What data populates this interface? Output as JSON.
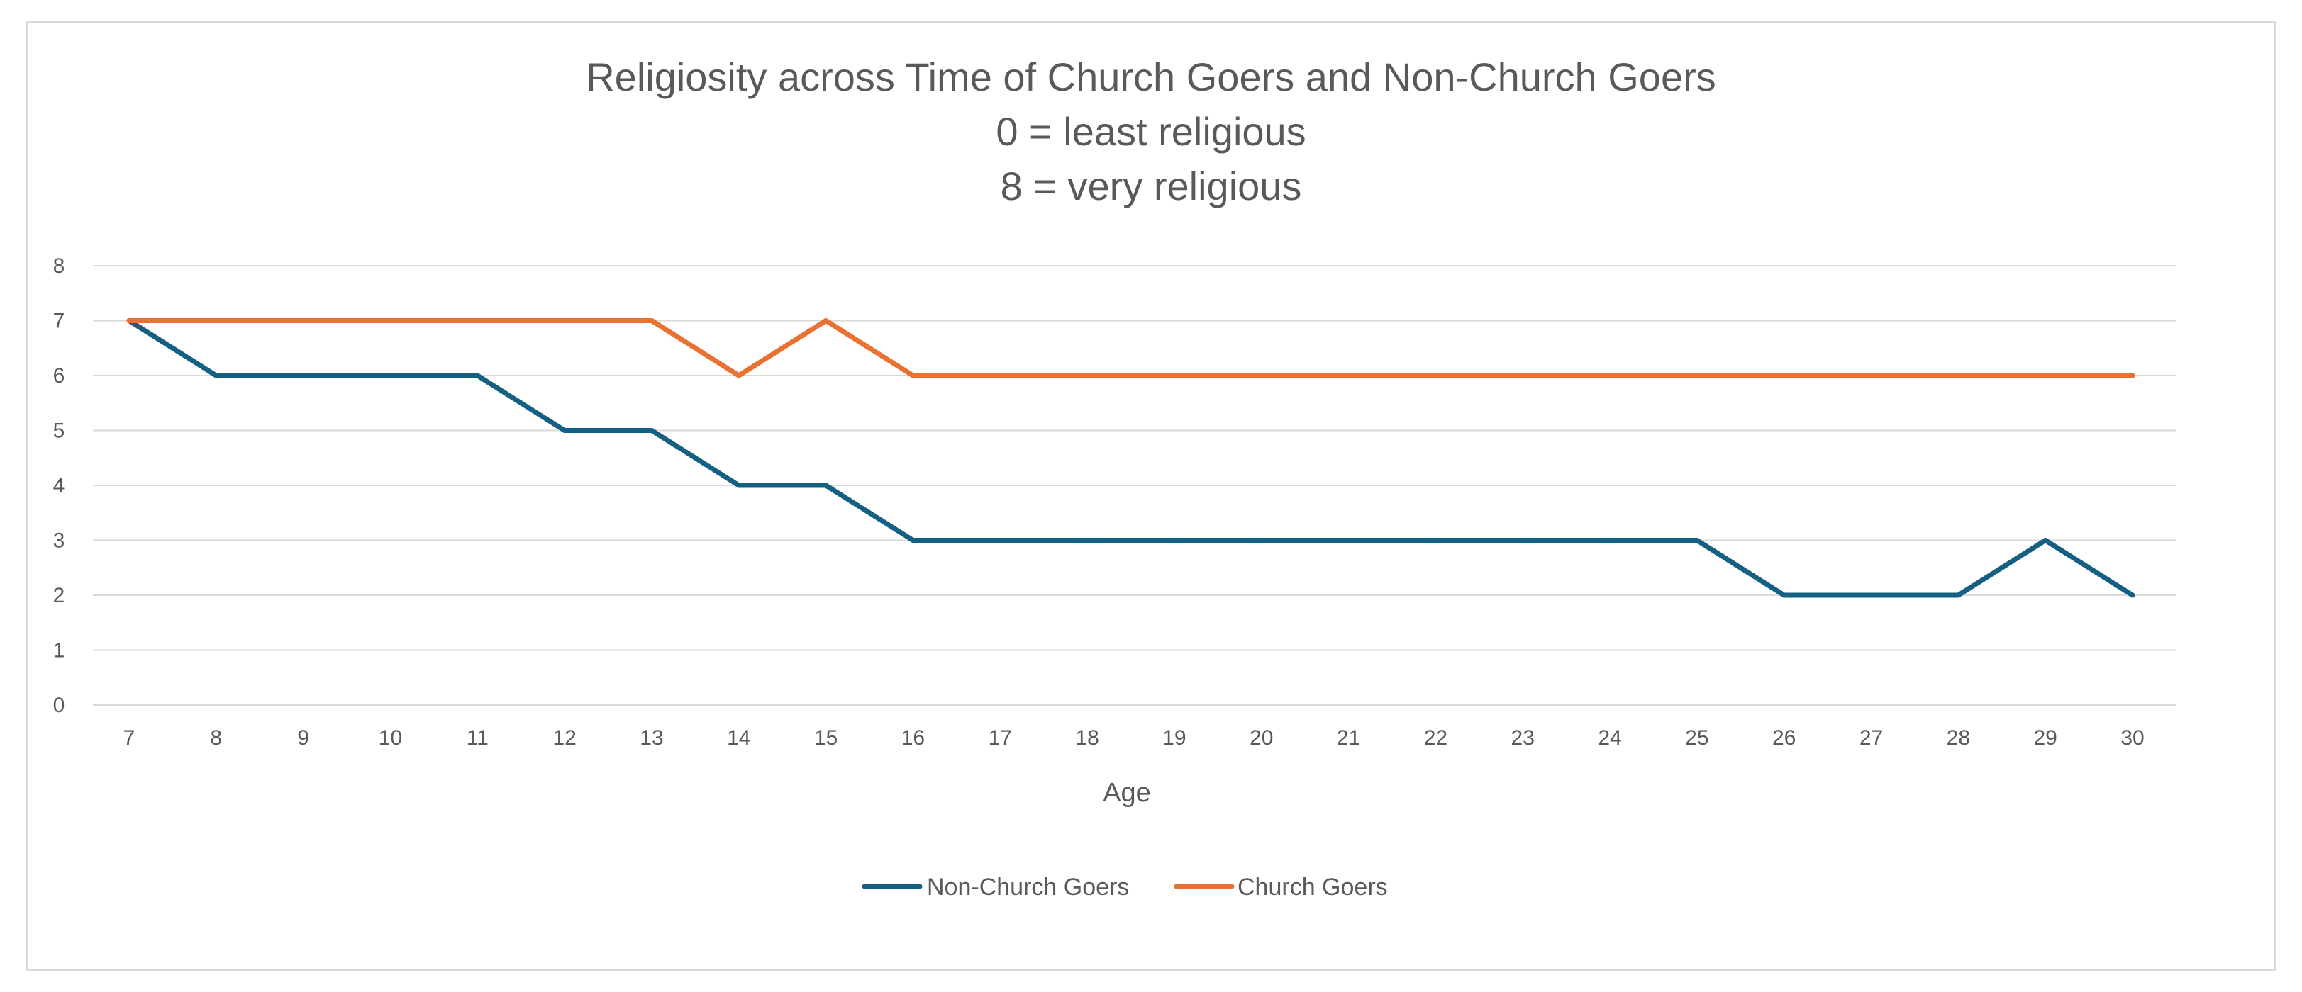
{
  "chart_data": {
    "type": "line",
    "title_lines": [
      "Religiosity across Time of Church Goers and Non-Church Goers",
      "0 = least religious",
      "8 = very religious"
    ],
    "xlabel": "Age",
    "ylabel": "",
    "categories": [
      "7",
      "8",
      "9",
      "10",
      "11",
      "12",
      "13",
      "14",
      "15",
      "16",
      "17",
      "18",
      "19",
      "20",
      "21",
      "22",
      "23",
      "24",
      "25",
      "26",
      "27",
      "28",
      "29",
      "30"
    ],
    "ylim": [
      0,
      8
    ],
    "yticks": [
      "0",
      "1",
      "2",
      "3",
      "4",
      "5",
      "6",
      "7",
      "8"
    ],
    "grid": true,
    "legend_position": "bottom",
    "series": [
      {
        "name": "Non-Church Goers",
        "color": "#156082",
        "values": [
          7,
          6,
          6,
          6,
          6,
          5,
          5,
          4,
          4,
          3,
          3,
          3,
          3,
          3,
          3,
          3,
          3,
          3,
          3,
          2,
          2,
          2,
          3,
          2
        ]
      },
      {
        "name": "Church Goers",
        "color": "#E97132",
        "values": [
          7,
          7,
          7,
          7,
          7,
          7,
          7,
          6,
          7,
          6,
          6,
          6,
          6,
          6,
          6,
          6,
          6,
          6,
          6,
          6,
          6,
          6,
          6,
          6
        ]
      }
    ]
  }
}
